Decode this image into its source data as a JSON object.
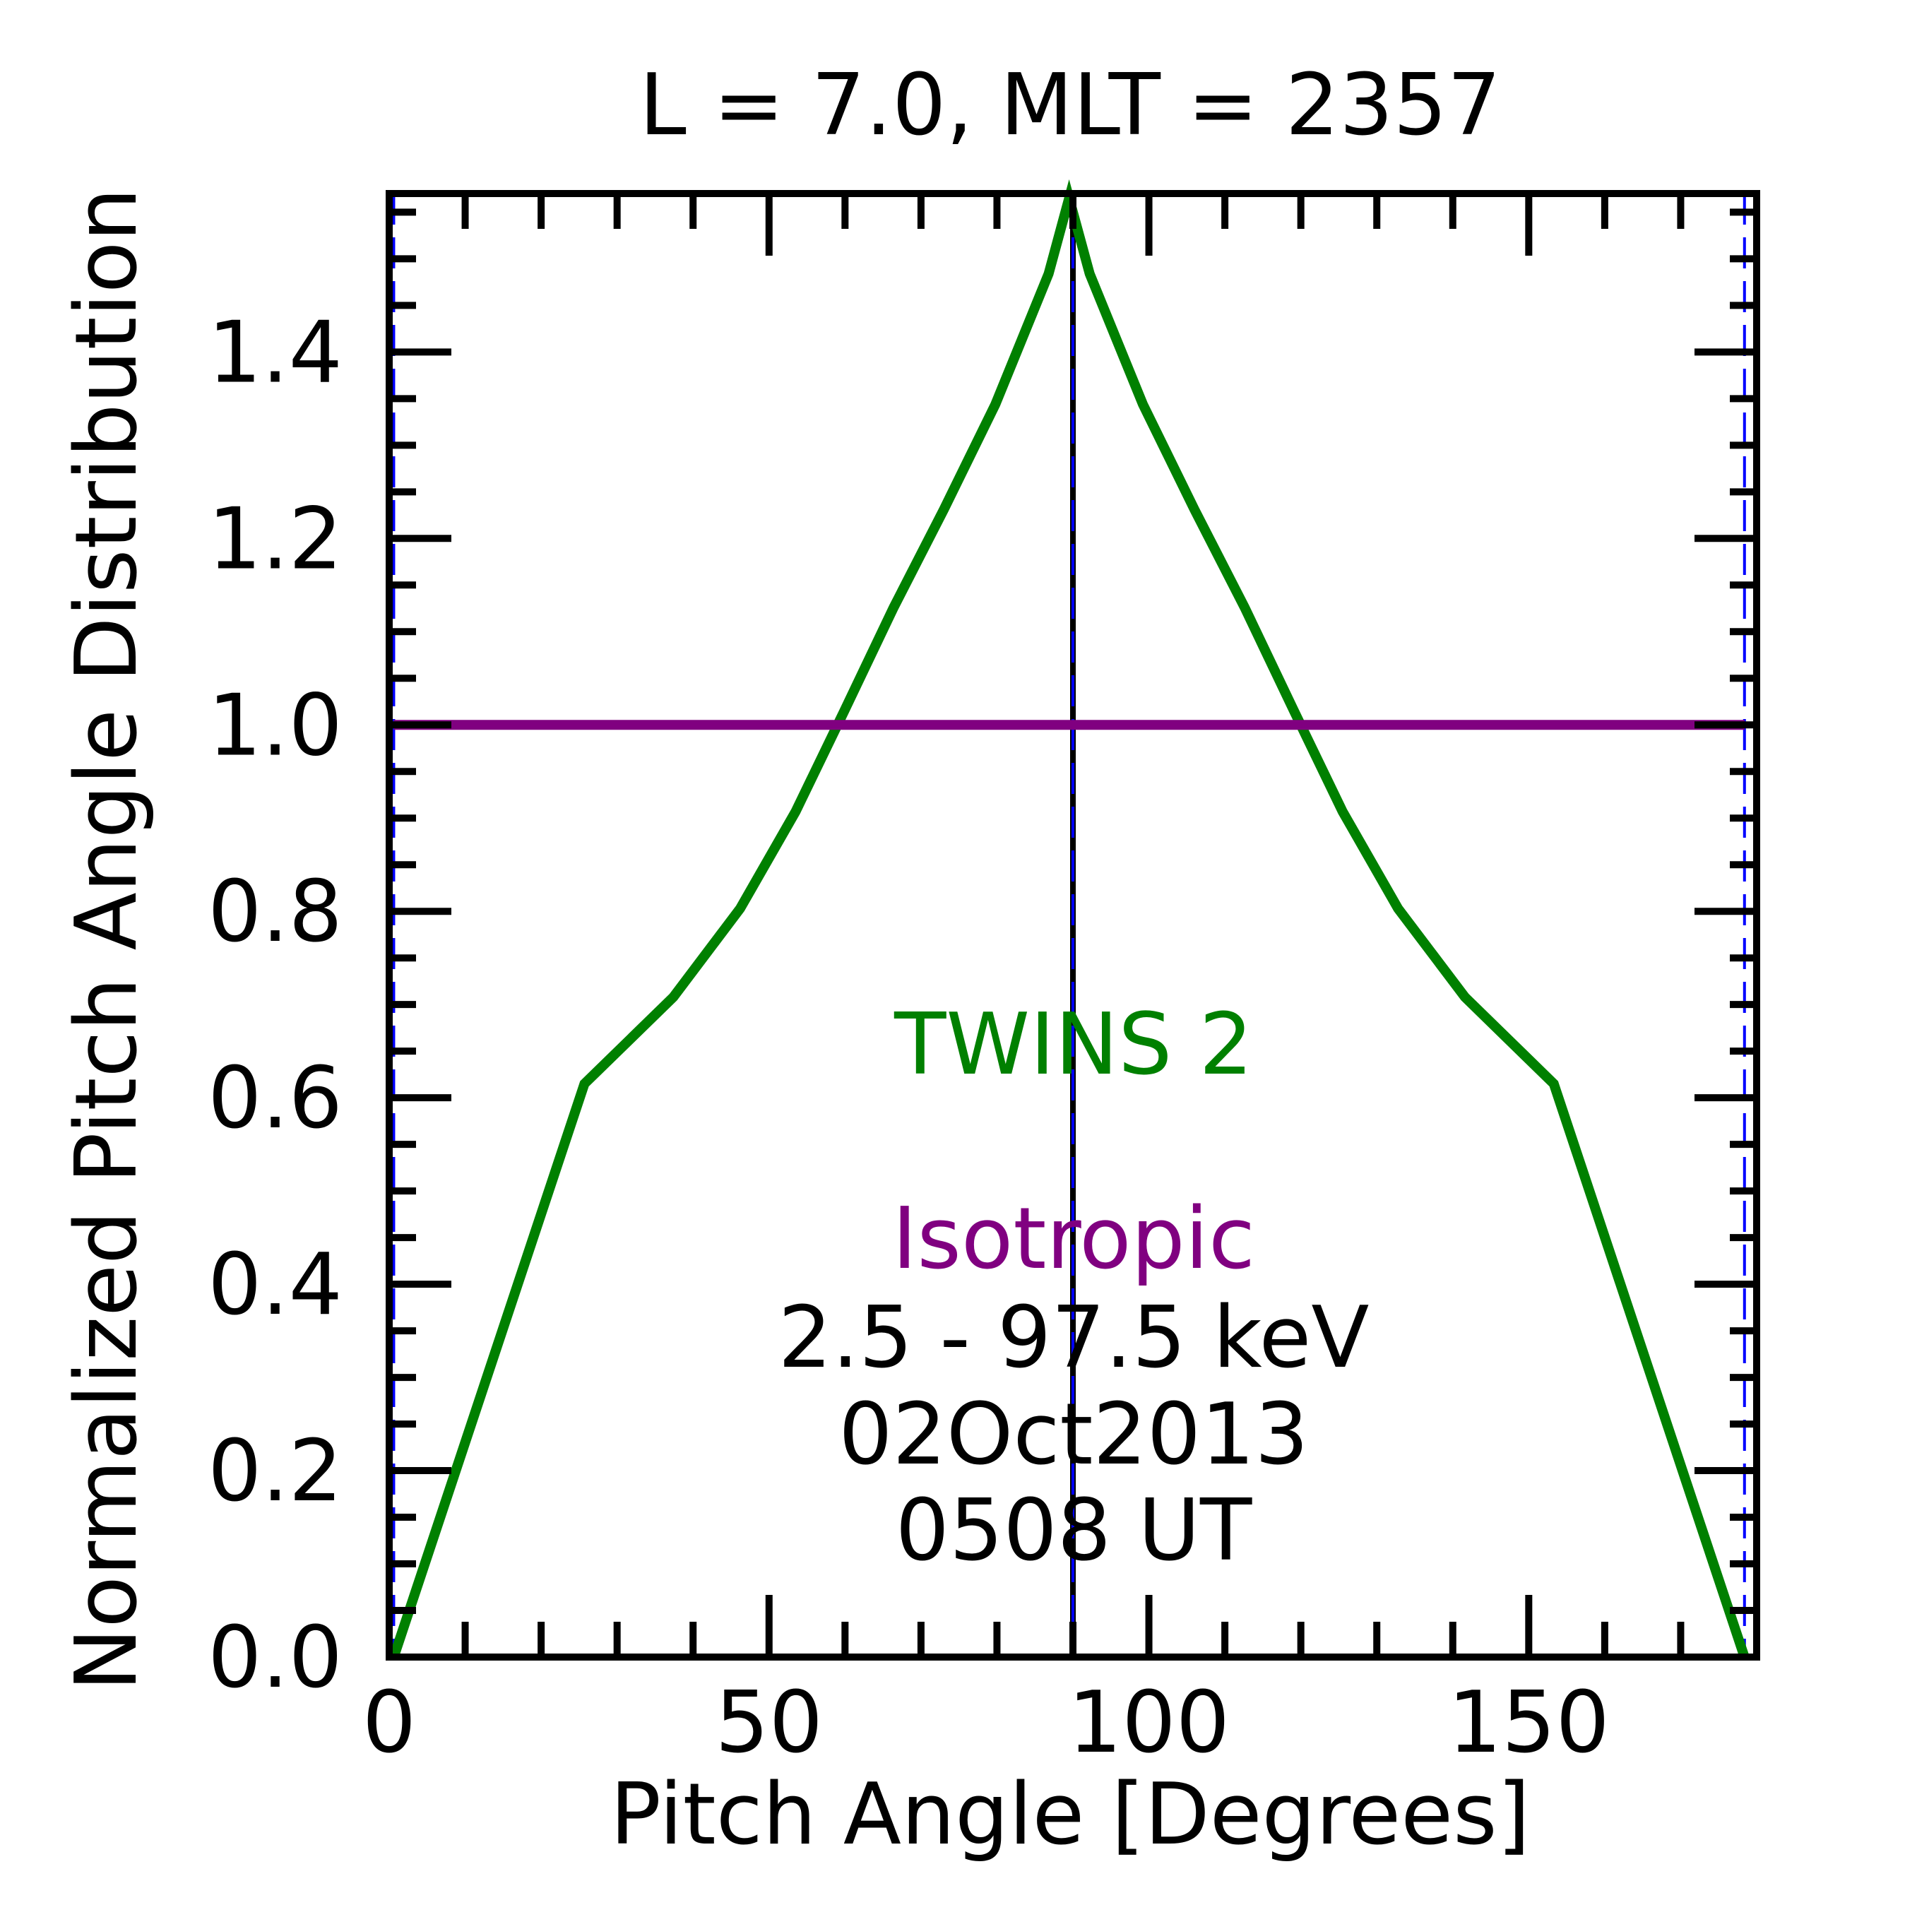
{
  "chart_data": {
    "type": "line",
    "title": "L =  7.0, MLT = 2357",
    "xlabel": "Pitch Angle [Degrees]",
    "ylabel": "Normalized Pitch Angle Distribution",
    "xlim": [
      0,
      180
    ],
    "ylim": [
      0,
      1.57
    ],
    "xticks": [
      0,
      50,
      100,
      150
    ],
    "xtick_labels": [
      "0",
      "50",
      "100",
      "150"
    ],
    "yticks": [
      0.0,
      0.2,
      0.4,
      0.6,
      0.8,
      1.0,
      1.2,
      1.4
    ],
    "ytick_labels": [
      "0.0",
      "0.2",
      "0.4",
      "0.6",
      "0.8",
      "1.0",
      "1.2",
      "1.4"
    ],
    "grid": false,
    "series": [
      {
        "name": "TWINS 2",
        "color": "#008000",
        "x": [
          0.6,
          25.7,
          37.4,
          46.2,
          53.5,
          59.9,
          66.4,
          73.0,
          79.8,
          86.8,
          89.5,
          92.2,
          99.2,
          106.0,
          112.6,
          119.1,
          125.5,
          132.8,
          141.6,
          153.3,
          178.4
        ],
        "y": [
          0.0,
          0.615,
          0.708,
          0.803,
          0.907,
          1.015,
          1.126,
          1.231,
          1.344,
          1.484,
          1.565,
          1.484,
          1.344,
          1.231,
          1.126,
          1.015,
          0.907,
          0.803,
          0.708,
          0.615,
          0.0
        ]
      },
      {
        "name": "Isotropic",
        "color": "#800080",
        "x": [
          0.6,
          178.4
        ],
        "y": [
          1.0,
          1.0
        ]
      }
    ],
    "vertical_lines": [
      {
        "x": 0.6,
        "color": "#0000ff",
        "style": "dashed"
      },
      {
        "x": 90.0,
        "color": "#000000",
        "style": "solid"
      },
      {
        "x": 90.0,
        "color": "#0000ff",
        "style": "dashed"
      },
      {
        "x": 178.4,
        "color": "#0000ff",
        "style": "dashed"
      }
    ],
    "annotations": [
      {
        "text": "TWINS 2",
        "color": "#008000"
      },
      {
        "text": "Isotropic",
        "color": "#800080"
      },
      {
        "text": "2.5 - 97.5 keV",
        "color": "#000000"
      },
      {
        "text": "02Oct2013",
        "color": "#000000"
      },
      {
        "text": "0508 UT",
        "color": "#000000"
      }
    ]
  }
}
